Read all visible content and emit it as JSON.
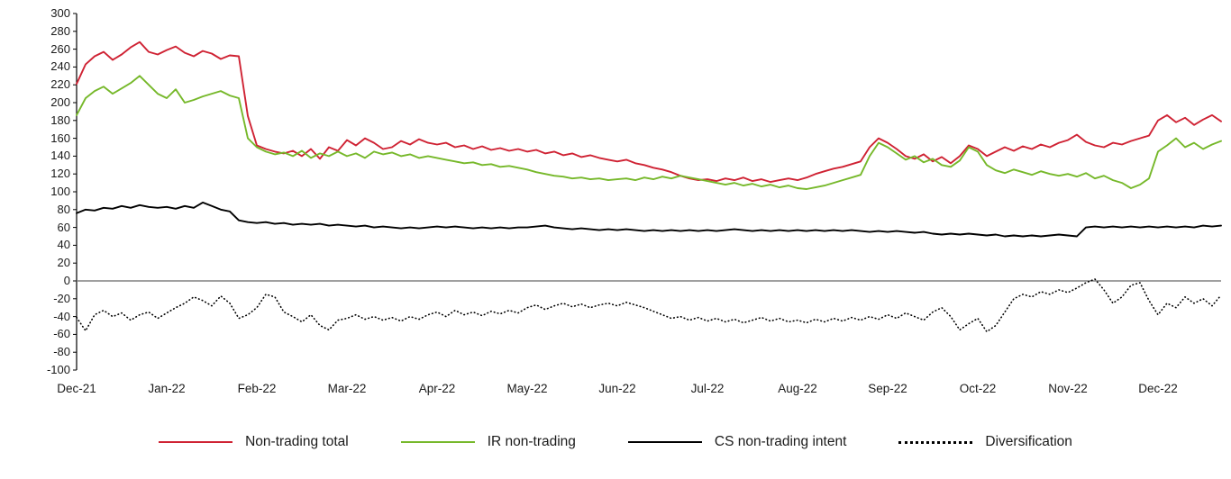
{
  "chart_data": {
    "type": "line",
    "title": "",
    "xlabel": "",
    "ylabel": "",
    "ylim": [
      -100,
      300
    ],
    "grid": "zero-line-only",
    "legend_position": "bottom-center",
    "zero_line_color": "#808080",
    "axis_color": "#000000",
    "text_color": "#1a1a1a",
    "y_ticks": [
      300,
      280,
      260,
      240,
      220,
      200,
      180,
      160,
      140,
      120,
      100,
      80,
      60,
      40,
      20,
      0,
      -20,
      -40,
      -60,
      -80,
      -100
    ],
    "x_tick_labels": [
      "Dec-21",
      "Jan-22",
      "Feb-22",
      "Mar-22",
      "Apr-22",
      "May-22",
      "Jun-22",
      "Jul-22",
      "Aug-22",
      "Sep-22",
      "Oct-22",
      "Nov-22",
      "Dec-22"
    ],
    "series": [
      {
        "name": "Non-trading total",
        "color": "#cf2233",
        "style": "solid",
        "values": [
          221,
          243,
          252,
          257,
          248,
          254,
          262,
          268,
          257,
          254,
          259,
          263,
          256,
          252,
          258,
          255,
          249,
          253,
          252,
          185,
          152,
          148,
          145,
          143,
          146,
          140,
          148,
          137,
          150,
          146,
          158,
          152,
          160,
          155,
          148,
          150,
          157,
          153,
          159,
          155,
          153,
          155,
          150,
          152,
          148,
          151,
          147,
          149,
          146,
          148,
          145,
          147,
          143,
          145,
          141,
          143,
          139,
          141,
          138,
          136,
          134,
          136,
          132,
          130,
          127,
          125,
          122,
          118,
          115,
          113,
          114,
          112,
          115,
          113,
          116,
          112,
          114,
          111,
          113,
          115,
          113,
          116,
          120,
          123,
          126,
          128,
          131,
          134,
          150,
          160,
          155,
          148,
          140,
          137,
          142,
          134,
          139,
          132,
          140,
          152,
          148,
          140,
          145,
          150,
          146,
          151,
          148,
          153,
          150,
          155,
          158,
          164,
          156,
          152,
          150,
          155,
          153,
          157,
          160,
          163,
          180,
          186,
          178,
          183,
          175,
          181,
          186,
          179
        ]
      },
      {
        "name": "IR non-trading",
        "color": "#76b82a",
        "style": "solid",
        "values": [
          186,
          205,
          213,
          218,
          210,
          216,
          222,
          230,
          220,
          210,
          205,
          215,
          200,
          203,
          207,
          210,
          213,
          208,
          205,
          160,
          150,
          145,
          142,
          144,
          140,
          146,
          138,
          143,
          140,
          145,
          140,
          143,
          138,
          145,
          142,
          144,
          140,
          142,
          138,
          140,
          138,
          136,
          134,
          132,
          133,
          130,
          131,
          128,
          129,
          127,
          125,
          122,
          120,
          118,
          117,
          115,
          116,
          114,
          115,
          113,
          114,
          115,
          113,
          116,
          114,
          117,
          115,
          118,
          116,
          114,
          112,
          110,
          108,
          110,
          107,
          109,
          106,
          108,
          105,
          107,
          104,
          103,
          105,
          107,
          110,
          113,
          116,
          119,
          140,
          155,
          150,
          143,
          136,
          140,
          133,
          137,
          130,
          128,
          135,
          150,
          145,
          130,
          124,
          121,
          125,
          122,
          119,
          123,
          120,
          118,
          120,
          117,
          121,
          115,
          118,
          113,
          110,
          104,
          108,
          115,
          145,
          152,
          160,
          150,
          155,
          148,
          153,
          157
        ]
      },
      {
        "name": "CS non-trading intent",
        "color": "#000000",
        "style": "solid",
        "values": [
          76,
          80,
          79,
          82,
          81,
          84,
          82,
          85,
          83,
          82,
          83,
          81,
          84,
          82,
          88,
          84,
          80,
          78,
          68,
          66,
          65,
          66,
          64,
          65,
          63,
          64,
          63,
          64,
          62,
          63,
          62,
          61,
          62,
          60,
          61,
          60,
          59,
          60,
          59,
          60,
          61,
          60,
          61,
          60,
          59,
          60,
          59,
          60,
          59,
          60,
          60,
          61,
          62,
          60,
          59,
          58,
          59,
          58,
          57,
          58,
          57,
          58,
          57,
          56,
          57,
          56,
          57,
          56,
          57,
          56,
          57,
          56,
          57,
          58,
          57,
          56,
          57,
          56,
          57,
          56,
          57,
          56,
          57,
          56,
          57,
          56,
          57,
          56,
          55,
          56,
          55,
          56,
          55,
          54,
          55,
          53,
          52,
          53,
          52,
          53,
          52,
          51,
          52,
          50,
          51,
          50,
          51,
          50,
          51,
          52,
          51,
          50,
          60,
          61,
          60,
          61,
          60,
          61,
          60,
          61,
          60,
          61,
          60,
          61,
          60,
          62,
          61,
          62
        ]
      },
      {
        "name": "Diversification",
        "color": "#000000",
        "style": "dotted",
        "values": [
          -41,
          -56,
          -38,
          -33,
          -40,
          -36,
          -44,
          -38,
          -35,
          -42,
          -36,
          -30,
          -25,
          -18,
          -22,
          -28,
          -17,
          -25,
          -42,
          -38,
          -30,
          -15,
          -18,
          -35,
          -40,
          -46,
          -38,
          -50,
          -55,
          -44,
          -42,
          -38,
          -43,
          -40,
          -44,
          -41,
          -45,
          -40,
          -43,
          -38,
          -35,
          -40,
          -33,
          -38,
          -35,
          -39,
          -34,
          -37,
          -33,
          -36,
          -30,
          -27,
          -32,
          -28,
          -25,
          -29,
          -26,
          -30,
          -27,
          -25,
          -28,
          -24,
          -27,
          -30,
          -34,
          -38,
          -42,
          -40,
          -44,
          -41,
          -45,
          -42,
          -46,
          -43,
          -47,
          -44,
          -41,
          -45,
          -42,
          -46,
          -44,
          -47,
          -43,
          -46,
          -42,
          -45,
          -41,
          -44,
          -40,
          -43,
          -38,
          -42,
          -36,
          -40,
          -44,
          -35,
          -30,
          -40,
          -55,
          -48,
          -42,
          -57,
          -50,
          -35,
          -20,
          -15,
          -18,
          -12,
          -15,
          -10,
          -13,
          -8,
          -2,
          2,
          -10,
          -25,
          -18,
          -5,
          -2,
          -22,
          -38,
          -25,
          -30,
          -18,
          -25,
          -20,
          -28,
          -16
        ]
      }
    ]
  }
}
